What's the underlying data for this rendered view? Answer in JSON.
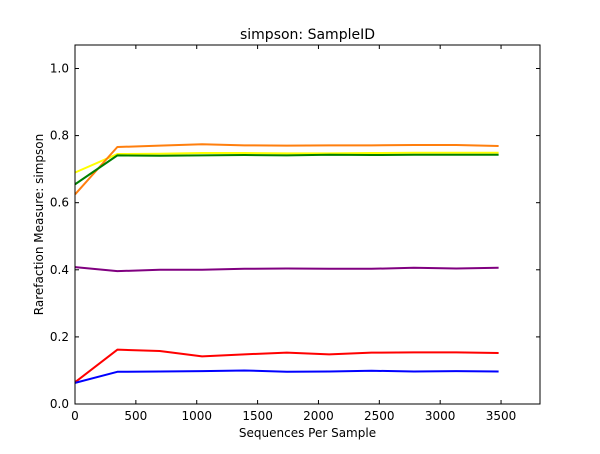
{
  "chart_data": {
    "type": "line",
    "title": "simpson: SampleID",
    "xlabel": "Sequences Per Sample",
    "ylabel": "Rarefaction Measure: simpson",
    "xlim": [
      0,
      3820
    ],
    "ylim": [
      0,
      1.07
    ],
    "xticks": [
      0,
      500,
      1000,
      1500,
      2000,
      2500,
      3000,
      3500
    ],
    "xtick_labels": [
      "0",
      "500",
      "1000",
      "1500",
      "2000",
      "2500",
      "3000",
      "3500"
    ],
    "yticks": [
      0.0,
      0.2,
      0.4,
      0.6,
      0.8,
      1.0
    ],
    "ytick_labels": [
      "0.0",
      "0.2",
      "0.4",
      "0.6",
      "0.8",
      "1.0"
    ],
    "grid": false,
    "legend": false,
    "x": [
      1,
      348,
      696,
      1044,
      1392,
      1740,
      2088,
      2436,
      2784,
      3132,
      3480
    ],
    "series": [
      {
        "color": "#ffff00",
        "values": [
          0.69,
          0.745,
          0.746,
          0.748,
          0.748,
          0.747,
          0.747,
          0.748,
          0.749,
          0.749,
          0.749
        ]
      },
      {
        "color": "#ff7f0e",
        "values": [
          0.625,
          0.766,
          0.77,
          0.774,
          0.771,
          0.77,
          0.771,
          0.771,
          0.772,
          0.772,
          0.769
        ]
      },
      {
        "color": "#008000",
        "values": [
          0.655,
          0.741,
          0.74,
          0.741,
          0.742,
          0.741,
          0.743,
          0.742,
          0.743,
          0.743,
          0.743
        ]
      },
      {
        "color": "#800080",
        "values": [
          0.408,
          0.396,
          0.4,
          0.4,
          0.403,
          0.404,
          0.403,
          0.403,
          0.406,
          0.404,
          0.406
        ]
      },
      {
        "color": "#ff0000",
        "values": [
          0.065,
          0.162,
          0.158,
          0.142,
          0.148,
          0.153,
          0.148,
          0.153,
          0.154,
          0.154,
          0.152
        ]
      },
      {
        "color": "#0000ff",
        "values": [
          0.063,
          0.096,
          0.097,
          0.098,
          0.1,
          0.096,
          0.097,
          0.099,
          0.097,
          0.098,
          0.097
        ]
      }
    ]
  }
}
